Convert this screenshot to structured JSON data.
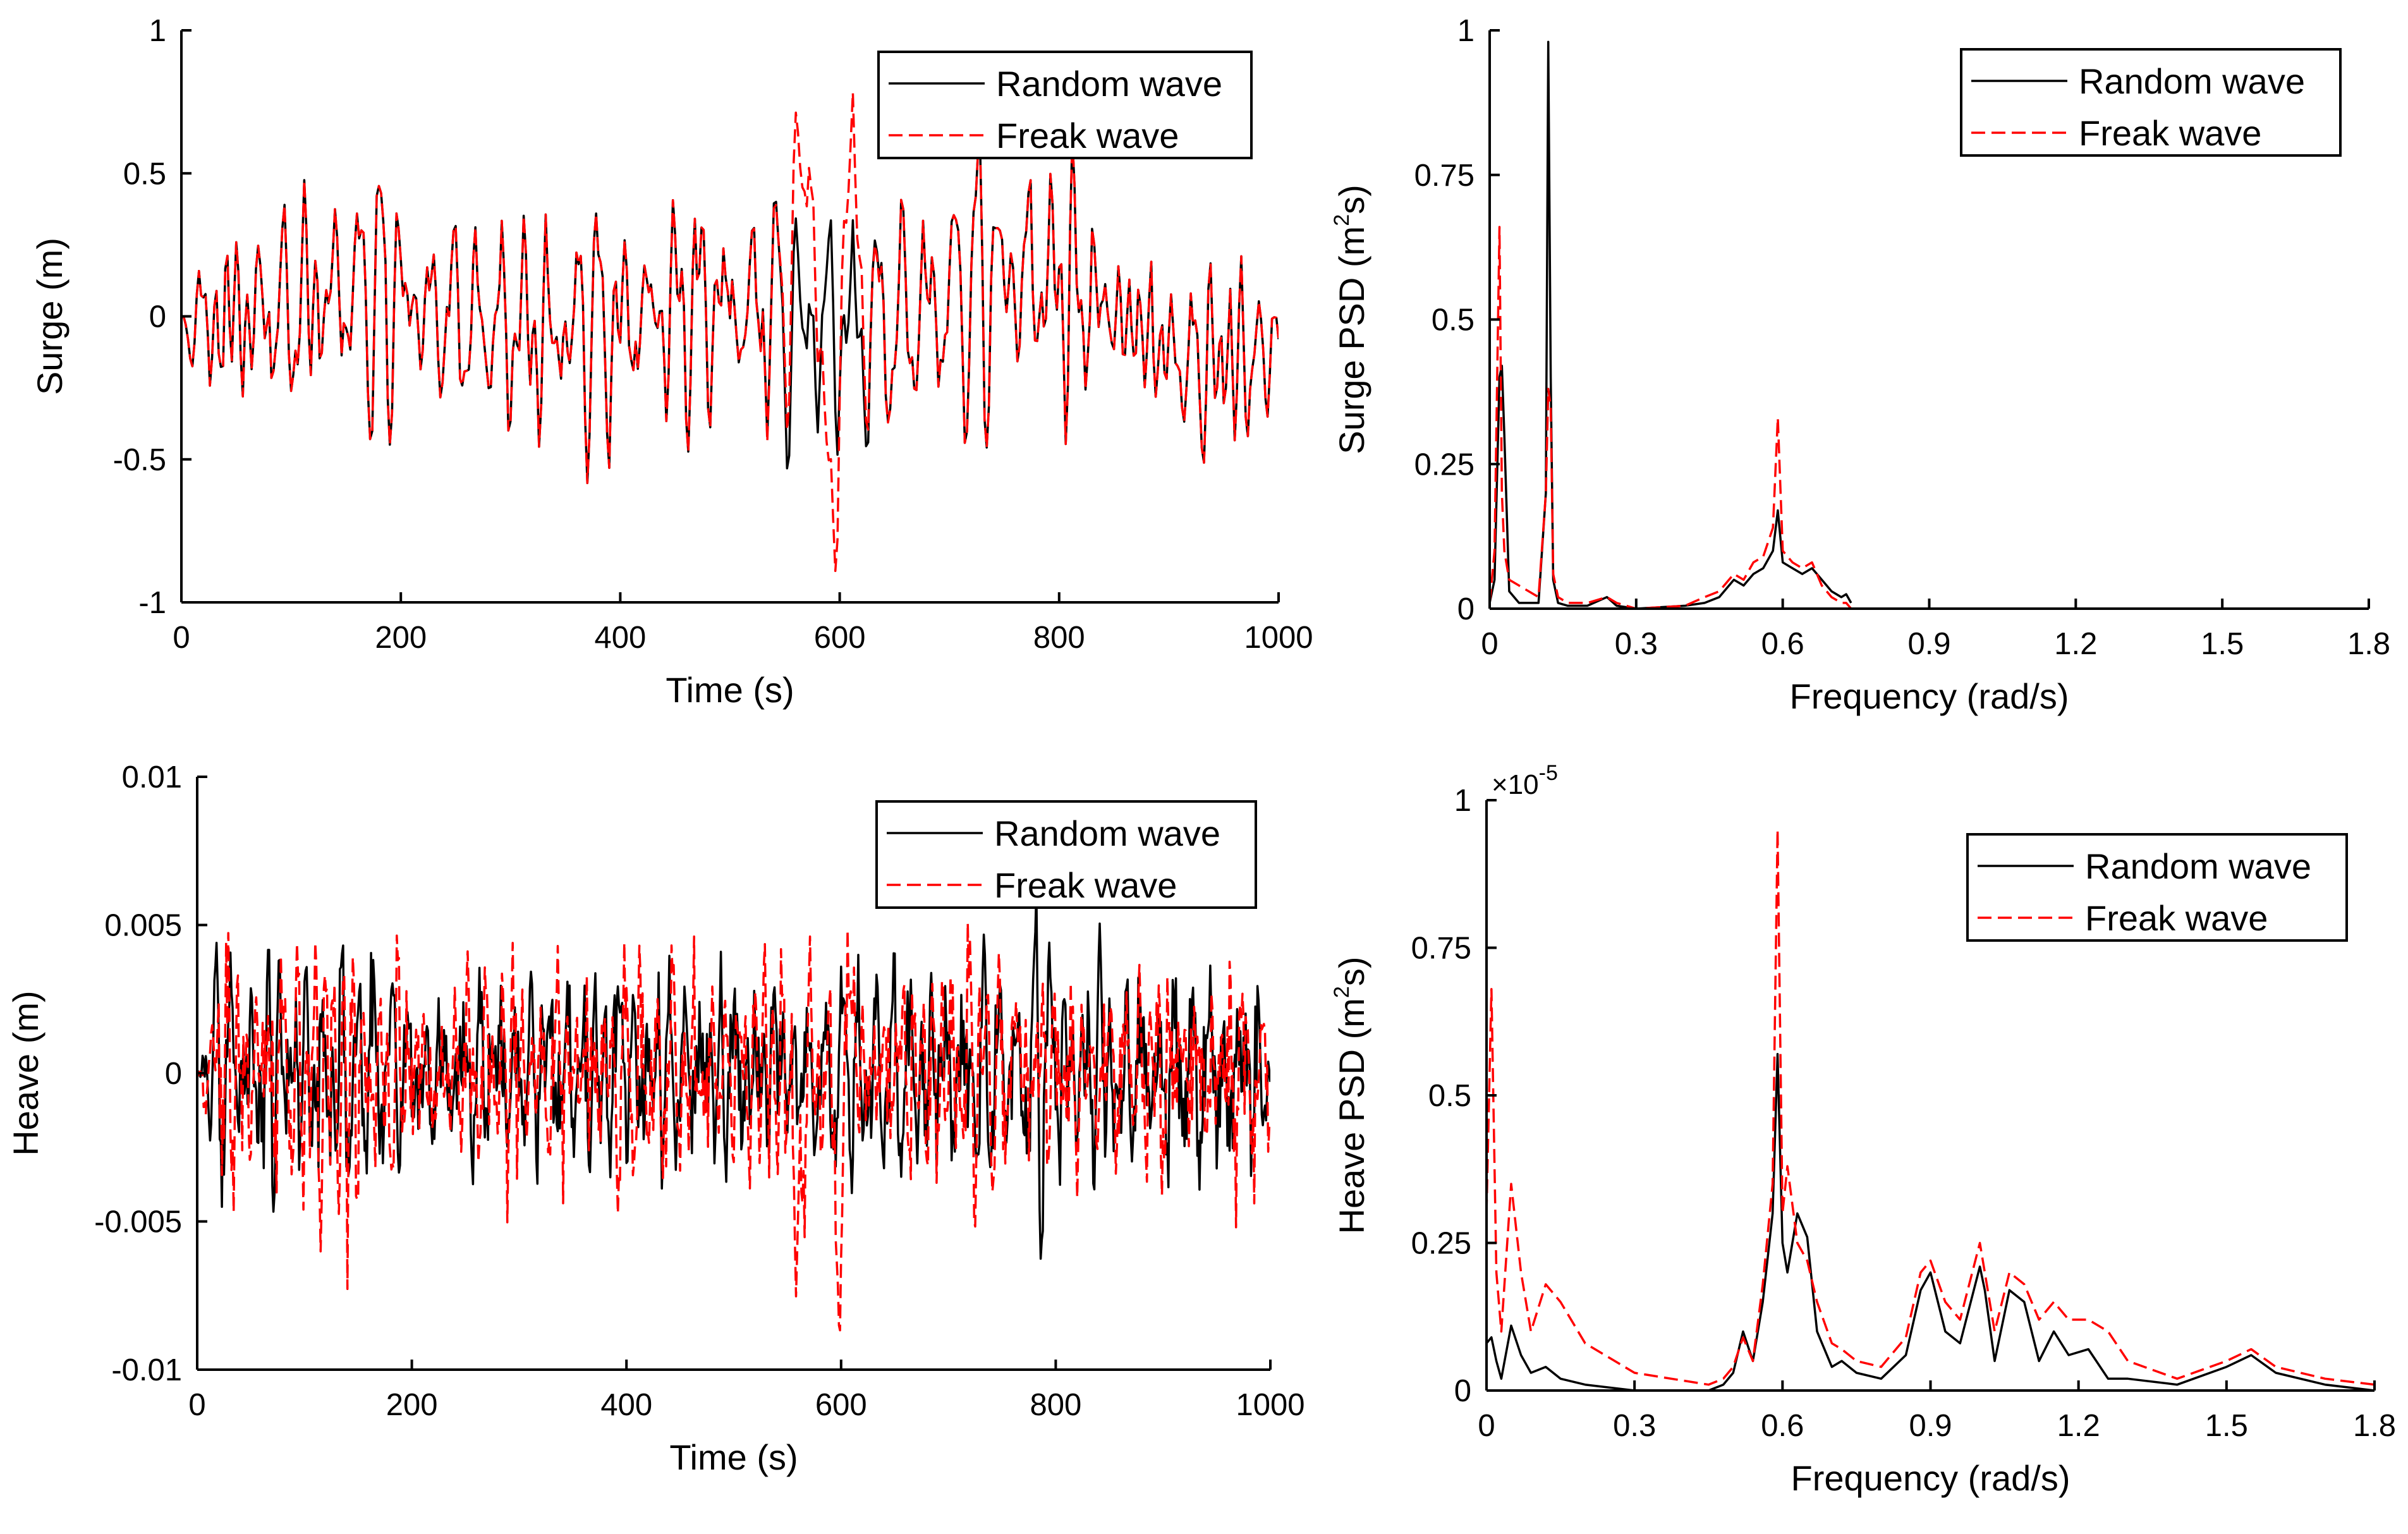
{
  "colors": {
    "random": "#000000",
    "freak": "#ff0000"
  },
  "chart_data": [
    {
      "id": "surge-time",
      "type": "line",
      "title": "",
      "xlabel": "Time (s)",
      "ylabel": "Surge (m)",
      "xlim": [
        0,
        1000
      ],
      "ylim": [
        -1,
        1
      ],
      "xticks": [
        0,
        200,
        400,
        600,
        800,
        1000
      ],
      "xtick_labels": [
        "0",
        "200",
        "400",
        "600",
        "800",
        "1000"
      ],
      "yticks": [
        -1,
        -0.5,
        0,
        0.5,
        1
      ],
      "ytick_labels": [
        "-1",
        "-0.5",
        "0",
        "0.5",
        "1"
      ],
      "legend": [
        "Random wave",
        "Freak wave"
      ],
      "series": [
        {
          "name": "Random wave",
          "style": "solid",
          "synthetic": {
            "seed": 11,
            "dt": 2,
            "base": [
              0,
              0.32,
              0.035
            ],
            "lowfreq": true,
            "events": []
          }
        },
        {
          "name": "Freak wave",
          "style": "dashed",
          "synthetic": {
            "seed": 11,
            "dt": 2,
            "base": [
              0,
              0.32,
              0.035
            ],
            "lowfreq": true,
            "events": [
              [
                568,
                20,
                0.5
              ],
              [
                592,
                10,
                -0.85
              ],
              [
                610,
                16,
                0.45
              ]
            ]
          }
        }
      ]
    },
    {
      "id": "surge-psd",
      "type": "line",
      "title": "",
      "xlabel": "Frequency (rad/s)",
      "ylabel": "Surge PSD (m²s)",
      "xlim": [
        0,
        1.8
      ],
      "ylim": [
        0,
        1
      ],
      "xticks": [
        0,
        0.3,
        0.6,
        0.9,
        1.2,
        1.5,
        1.8
      ],
      "xtick_labels": [
        "0",
        "0.3",
        "0.6",
        "0.9",
        "1.2",
        "1.5",
        "1.8"
      ],
      "yticks": [
        0,
        0.25,
        0.5,
        0.75,
        1
      ],
      "ytick_labels": [
        "0",
        "0.25",
        "0.5",
        "0.75",
        "1"
      ],
      "legend": [
        "Random wave",
        "Freak wave"
      ],
      "series": [
        {
          "name": "Random wave",
          "style": "solid",
          "x": [
            0,
            0.01,
            0.02,
            0.025,
            0.03,
            0.04,
            0.06,
            0.1,
            0.115,
            0.12,
            0.125,
            0.13,
            0.14,
            0.16,
            0.2,
            0.24,
            0.26,
            0.3,
            0.4,
            0.44,
            0.47,
            0.5,
            0.52,
            0.54,
            0.56,
            0.58,
            0.59,
            0.6,
            0.62,
            0.64,
            0.66,
            0.68,
            0.7,
            0.72,
            0.73,
            0.74
          ],
          "y": [
            0.01,
            0.05,
            0.4,
            0.42,
            0.3,
            0.03,
            0.01,
            0.01,
            0.2,
            0.98,
            0.4,
            0.05,
            0.01,
            0.005,
            0.005,
            0.02,
            0.005,
            0.0,
            0.005,
            0.01,
            0.02,
            0.05,
            0.04,
            0.06,
            0.07,
            0.1,
            0.17,
            0.08,
            0.07,
            0.06,
            0.07,
            0.05,
            0.03,
            0.02,
            0.025,
            0.01
          ]
        },
        {
          "name": "Freak wave",
          "style": "dashed",
          "x": [
            0,
            0.01,
            0.02,
            0.025,
            0.03,
            0.04,
            0.06,
            0.1,
            0.115,
            0.12,
            0.125,
            0.13,
            0.14,
            0.16,
            0.2,
            0.24,
            0.26,
            0.3,
            0.4,
            0.44,
            0.47,
            0.5,
            0.52,
            0.54,
            0.56,
            0.58,
            0.59,
            0.6,
            0.62,
            0.64,
            0.66,
            0.68,
            0.7,
            0.72,
            0.73,
            0.74
          ],
          "y": [
            0.01,
            0.1,
            0.66,
            0.2,
            0.1,
            0.05,
            0.04,
            0.02,
            0.2,
            0.38,
            0.35,
            0.06,
            0.02,
            0.01,
            0.01,
            0.02,
            0.01,
            0.0,
            0.005,
            0.02,
            0.03,
            0.06,
            0.05,
            0.08,
            0.09,
            0.14,
            0.33,
            0.1,
            0.08,
            0.07,
            0.08,
            0.04,
            0.02,
            0.01,
            0.01,
            0.0
          ]
        }
      ]
    },
    {
      "id": "heave-time",
      "type": "line",
      "title": "",
      "xlabel": "Time (s)",
      "ylabel": "Heave (m)",
      "xlim": [
        0,
        1000
      ],
      "ylim": [
        -0.01,
        0.01
      ],
      "xticks": [
        0,
        200,
        400,
        600,
        800,
        1000
      ],
      "xtick_labels": [
        "0",
        "200",
        "400",
        "600",
        "800",
        "1000"
      ],
      "yticks": [
        -0.01,
        -0.005,
        0,
        0.005,
        0.01
      ],
      "ytick_labels": [
        "-0.01",
        "-0.005",
        "0",
        "0.005",
        "0.01"
      ],
      "legend": [
        "Random wave",
        "Freak wave"
      ],
      "series": [
        {
          "name": "Random wave",
          "style": "solid",
          "synthetic": {
            "seed": 23,
            "dt": 1,
            "base": [
              0,
              0.0024,
              0.0009
            ],
            "lowfreq": false,
            "events": []
          }
        },
        {
          "name": "Freak wave",
          "style": "dashed",
          "synthetic": {
            "seed": 57,
            "dt": 1,
            "base": [
              0,
              0.0026,
              0.001
            ],
            "lowfreq": false,
            "events": [
              [
                560,
                6,
                -0.006
              ],
              [
                598,
                5,
                -0.0085
              ],
              [
                607,
                4,
                0.0045
              ]
            ]
          }
        }
      ]
    },
    {
      "id": "heave-psd",
      "type": "line",
      "title": "",
      "xlabel": "Frequency (rad/s)",
      "ylabel": "Heave PSD (m²s)",
      "scale_note": "×10-5",
      "xlim": [
        0,
        1.8
      ],
      "ylim": [
        0,
        1
      ],
      "xticks": [
        0,
        0.3,
        0.6,
        0.9,
        1.2,
        1.5,
        1.8
      ],
      "xtick_labels": [
        "0",
        "0.3",
        "0.6",
        "0.9",
        "1.2",
        "1.5",
        "1.8"
      ],
      "yticks": [
        0,
        0.25,
        0.5,
        0.75,
        1
      ],
      "ytick_labels": [
        "0",
        "0.25",
        "0.5",
        "0.75",
        "1"
      ],
      "legend": [
        "Random wave",
        "Freak wave"
      ],
      "series": [
        {
          "name": "Random wave",
          "style": "solid",
          "x": [
            0,
            0.01,
            0.02,
            0.03,
            0.05,
            0.07,
            0.09,
            0.12,
            0.15,
            0.2,
            0.3,
            0.45,
            0.48,
            0.5,
            0.52,
            0.54,
            0.56,
            0.58,
            0.59,
            0.6,
            0.61,
            0.63,
            0.65,
            0.67,
            0.7,
            0.72,
            0.75,
            0.8,
            0.85,
            0.88,
            0.9,
            0.93,
            0.96,
            1.0,
            1.01,
            1.03,
            1.06,
            1.09,
            1.12,
            1.15,
            1.18,
            1.22,
            1.26,
            1.3,
            1.4,
            1.5,
            1.55,
            1.6,
            1.7,
            1.8
          ],
          "y": [
            0.08,
            0.09,
            0.05,
            0.02,
            0.11,
            0.06,
            0.03,
            0.04,
            0.02,
            0.01,
            0.0,
            0.0,
            0.01,
            0.03,
            0.1,
            0.05,
            0.15,
            0.3,
            0.57,
            0.25,
            0.2,
            0.3,
            0.26,
            0.1,
            0.04,
            0.05,
            0.03,
            0.02,
            0.06,
            0.17,
            0.2,
            0.1,
            0.08,
            0.21,
            0.17,
            0.05,
            0.17,
            0.15,
            0.05,
            0.1,
            0.06,
            0.07,
            0.02,
            0.02,
            0.01,
            0.04,
            0.06,
            0.03,
            0.01,
            0.0
          ]
        },
        {
          "name": "Freak wave",
          "style": "dashed",
          "x": [
            0,
            0.01,
            0.02,
            0.03,
            0.05,
            0.07,
            0.09,
            0.12,
            0.15,
            0.2,
            0.3,
            0.45,
            0.48,
            0.5,
            0.52,
            0.54,
            0.56,
            0.58,
            0.59,
            0.6,
            0.61,
            0.63,
            0.65,
            0.67,
            0.7,
            0.72,
            0.75,
            0.8,
            0.85,
            0.88,
            0.9,
            0.93,
            0.96,
            1.0,
            1.01,
            1.03,
            1.06,
            1.09,
            1.12,
            1.15,
            1.18,
            1.22,
            1.26,
            1.3,
            1.4,
            1.5,
            1.55,
            1.6,
            1.7,
            1.8
          ],
          "y": [
            0.3,
            0.68,
            0.2,
            0.1,
            0.35,
            0.2,
            0.1,
            0.18,
            0.15,
            0.08,
            0.03,
            0.01,
            0.02,
            0.04,
            0.09,
            0.05,
            0.18,
            0.35,
            0.95,
            0.3,
            0.38,
            0.25,
            0.22,
            0.15,
            0.08,
            0.07,
            0.05,
            0.04,
            0.09,
            0.2,
            0.22,
            0.15,
            0.12,
            0.25,
            0.2,
            0.1,
            0.2,
            0.18,
            0.12,
            0.15,
            0.12,
            0.12,
            0.1,
            0.05,
            0.02,
            0.05,
            0.07,
            0.04,
            0.02,
            0.01
          ]
        }
      ]
    }
  ]
}
